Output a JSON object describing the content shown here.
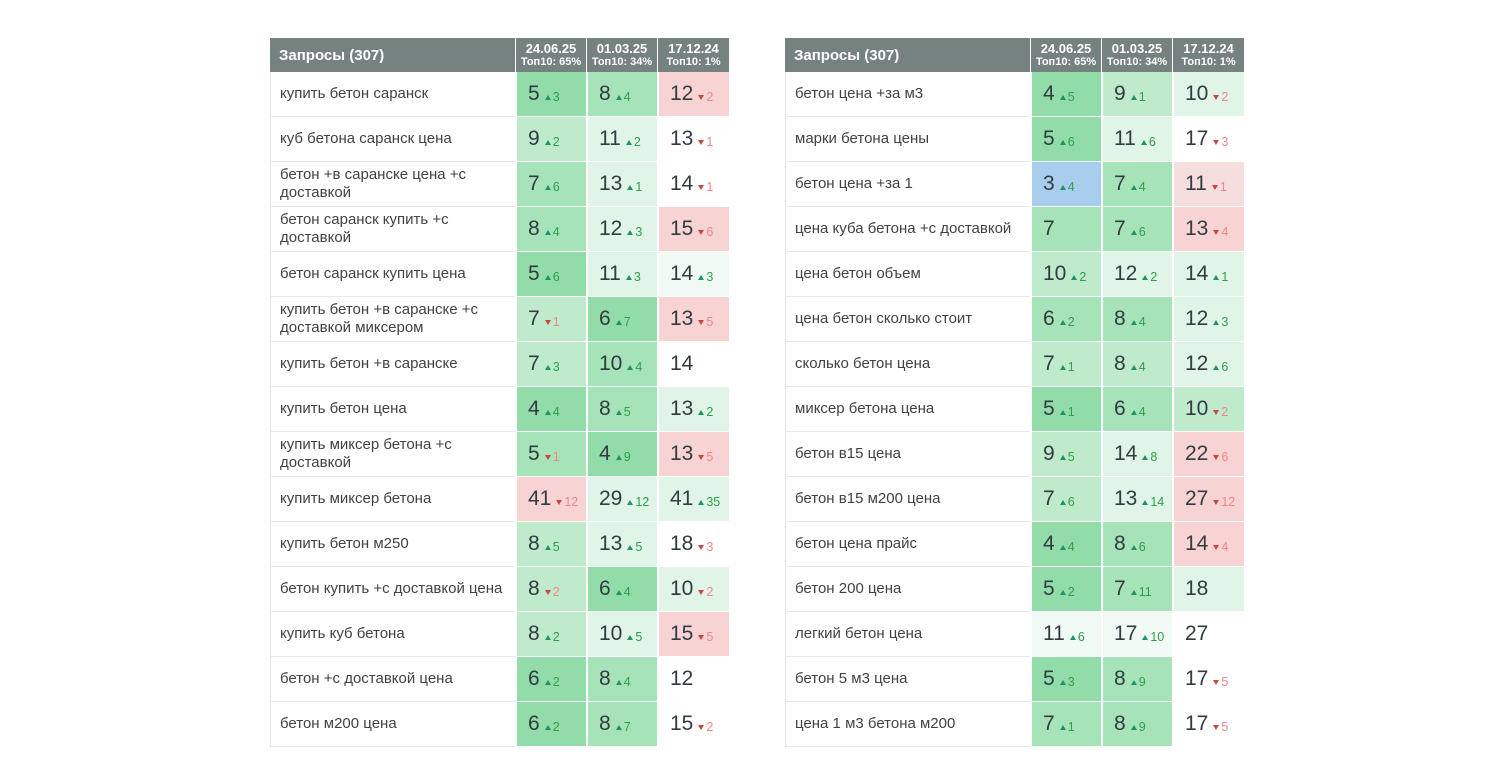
{
  "palette": {
    "header_bg": "#76827f",
    "header_text": "#ffffff",
    "query_text": "#424242",
    "value_text": "#323c40",
    "up_arrow": "#1d9464",
    "up_num": "#2da048",
    "down_arrow": "#c9473f",
    "down_num": "#ef8787",
    "g1": "#92dcaa",
    "g2": "#a7e3b9",
    "g3": "#bfeacc",
    "g4": "#e0f4e7",
    "g5": "#f0f9f4",
    "p1": "#f8d3d3",
    "p2": "#f7dede",
    "bl": "#a9cdec",
    "wh": "#ffffff"
  },
  "tables": [
    {
      "title": "Запросы (307)",
      "columns": [
        {
          "date": "24.06.25",
          "top10": "Топ10: 65%"
        },
        {
          "date": "01.03.25",
          "top10": "Топ10: 34%"
        },
        {
          "date": "17.12.24",
          "top10": "Топ10: 1%"
        }
      ],
      "rows": [
        {
          "query": "купить бетон саранск",
          "cells": [
            {
              "pos": "5",
              "dir": "up",
              "delta": "3",
              "bg": "g1"
            },
            {
              "pos": "8",
              "dir": "up",
              "delta": "4",
              "bg": "g2"
            },
            {
              "pos": "12",
              "dir": "down",
              "delta": "2",
              "bg": "p1"
            }
          ]
        },
        {
          "query": "куб бетона саранск цена",
          "cells": [
            {
              "pos": "9",
              "dir": "up",
              "delta": "2",
              "bg": "g3"
            },
            {
              "pos": "11",
              "dir": "up",
              "delta": "2",
              "bg": "g4"
            },
            {
              "pos": "13",
              "dir": "down",
              "delta": "1",
              "bg": "wh"
            }
          ]
        },
        {
          "query": "бетон +в саранске цена +с доставкой",
          "cells": [
            {
              "pos": "7",
              "dir": "up",
              "delta": "6",
              "bg": "g2"
            },
            {
              "pos": "13",
              "dir": "up",
              "delta": "1",
              "bg": "g4"
            },
            {
              "pos": "14",
              "dir": "down",
              "delta": "1",
              "bg": "wh"
            }
          ]
        },
        {
          "query": "бетон саранск купить +с доставкой",
          "cells": [
            {
              "pos": "8",
              "dir": "up",
              "delta": "4",
              "bg": "g2"
            },
            {
              "pos": "12",
              "dir": "up",
              "delta": "3",
              "bg": "g4"
            },
            {
              "pos": "15",
              "dir": "down",
              "delta": "6",
              "bg": "p1"
            }
          ]
        },
        {
          "query": "бетон саранск купить цена",
          "cells": [
            {
              "pos": "5",
              "dir": "up",
              "delta": "6",
              "bg": "g1"
            },
            {
              "pos": "11",
              "dir": "up",
              "delta": "3",
              "bg": "g4"
            },
            {
              "pos": "14",
              "dir": "up",
              "delta": "3",
              "bg": "g5"
            }
          ]
        },
        {
          "query": "купить бетон +в саранске +с доставкой миксером",
          "cells": [
            {
              "pos": "7",
              "dir": "down",
              "delta": "1",
              "bg": "g3"
            },
            {
              "pos": "6",
              "dir": "up",
              "delta": "7",
              "bg": "g1"
            },
            {
              "pos": "13",
              "dir": "down",
              "delta": "5",
              "bg": "p1"
            }
          ]
        },
        {
          "query": "купить бетон +в саранске",
          "cells": [
            {
              "pos": "7",
              "dir": "up",
              "delta": "3",
              "bg": "g3"
            },
            {
              "pos": "10",
              "dir": "up",
              "delta": "4",
              "bg": "g2"
            },
            {
              "pos": "14",
              "dir": null,
              "delta": null,
              "bg": "wh"
            }
          ]
        },
        {
          "query": "купить бетон цена",
          "cells": [
            {
              "pos": "4",
              "dir": "up",
              "delta": "4",
              "bg": "g1"
            },
            {
              "pos": "8",
              "dir": "up",
              "delta": "5",
              "bg": "g2"
            },
            {
              "pos": "13",
              "dir": "up",
              "delta": "2",
              "bg": "g4"
            }
          ]
        },
        {
          "query": "купить миксер бетона +с доставкой",
          "cells": [
            {
              "pos": "5",
              "dir": "down",
              "delta": "1",
              "bg": "g2"
            },
            {
              "pos": "4",
              "dir": "up",
              "delta": "9",
              "bg": "g1"
            },
            {
              "pos": "13",
              "dir": "down",
              "delta": "5",
              "bg": "p1"
            }
          ]
        },
        {
          "query": "купить миксер бетона",
          "cells": [
            {
              "pos": "41",
              "dir": "down",
              "delta": "12",
              "bg": "p1"
            },
            {
              "pos": "29",
              "dir": "up",
              "delta": "12",
              "bg": "g4"
            },
            {
              "pos": "41",
              "dir": "up",
              "delta": "35",
              "bg": "g4"
            }
          ]
        },
        {
          "query": "купить бетон м250",
          "cells": [
            {
              "pos": "8",
              "dir": "up",
              "delta": "5",
              "bg": "g3"
            },
            {
              "pos": "13",
              "dir": "up",
              "delta": "5",
              "bg": "g4"
            },
            {
              "pos": "18",
              "dir": "down",
              "delta": "3",
              "bg": "wh"
            }
          ]
        },
        {
          "query": "бетон купить +с доставкой цена",
          "cells": [
            {
              "pos": "8",
              "dir": "down",
              "delta": "2",
              "bg": "g3"
            },
            {
              "pos": "6",
              "dir": "up",
              "delta": "4",
              "bg": "g1"
            },
            {
              "pos": "10",
              "dir": "down",
              "delta": "2",
              "bg": "g4"
            }
          ]
        },
        {
          "query": "купить куб бетона",
          "cells": [
            {
              "pos": "8",
              "dir": "up",
              "delta": "2",
              "bg": "g3"
            },
            {
              "pos": "10",
              "dir": "up",
              "delta": "5",
              "bg": "g4"
            },
            {
              "pos": "15",
              "dir": "down",
              "delta": "5",
              "bg": "p1"
            }
          ]
        },
        {
          "query": "бетон +с доставкой цена",
          "cells": [
            {
              "pos": "6",
              "dir": "up",
              "delta": "2",
              "bg": "g1"
            },
            {
              "pos": "8",
              "dir": "up",
              "delta": "4",
              "bg": "g2"
            },
            {
              "pos": "12",
              "dir": null,
              "delta": null,
              "bg": "wh"
            }
          ]
        },
        {
          "query": "бетон м200 цена",
          "cells": [
            {
              "pos": "6",
              "dir": "up",
              "delta": "2",
              "bg": "g1"
            },
            {
              "pos": "8",
              "dir": "up",
              "delta": "7",
              "bg": "g2"
            },
            {
              "pos": "15",
              "dir": "down",
              "delta": "2",
              "bg": "wh"
            }
          ]
        }
      ]
    },
    {
      "title": "Запросы (307)",
      "columns": [
        {
          "date": "24.06.25",
          "top10": "Топ10: 65%"
        },
        {
          "date": "01.03.25",
          "top10": "Топ10: 34%"
        },
        {
          "date": "17.12.24",
          "top10": "Топ10: 1%"
        }
      ],
      "rows": [
        {
          "query": "бетон цена +за м3",
          "cells": [
            {
              "pos": "4",
              "dir": "up",
              "delta": "5",
              "bg": "g1"
            },
            {
              "pos": "9",
              "dir": "up",
              "delta": "1",
              "bg": "g3"
            },
            {
              "pos": "10",
              "dir": "down",
              "delta": "2",
              "bg": "g4"
            }
          ]
        },
        {
          "query": "марки бетона цены",
          "cells": [
            {
              "pos": "5",
              "dir": "up",
              "delta": "6",
              "bg": "g1"
            },
            {
              "pos": "11",
              "dir": "up",
              "delta": "6",
              "bg": "g4"
            },
            {
              "pos": "17",
              "dir": "down",
              "delta": "3",
              "bg": "wh"
            }
          ]
        },
        {
          "query": "бетон цена +за 1",
          "cells": [
            {
              "pos": "3",
              "dir": "up",
              "delta": "4",
              "bg": "bl"
            },
            {
              "pos": "7",
              "dir": "up",
              "delta": "4",
              "bg": "g2"
            },
            {
              "pos": "11",
              "dir": "down",
              "delta": "1",
              "bg": "p2"
            }
          ]
        },
        {
          "query": "цена куба бетона +с доставкой",
          "cells": [
            {
              "pos": "7",
              "dir": null,
              "delta": null,
              "bg": "g2"
            },
            {
              "pos": "7",
              "dir": "up",
              "delta": "6",
              "bg": "g2"
            },
            {
              "pos": "13",
              "dir": "down",
              "delta": "4",
              "bg": "p1"
            }
          ]
        },
        {
          "query": "цена бетон объем",
          "cells": [
            {
              "pos": "10",
              "dir": "up",
              "delta": "2",
              "bg": "g3"
            },
            {
              "pos": "12",
              "dir": "up",
              "delta": "2",
              "bg": "g4"
            },
            {
              "pos": "14",
              "dir": "up",
              "delta": "1",
              "bg": "g4"
            }
          ]
        },
        {
          "query": "цена бетон сколько стоит",
          "cells": [
            {
              "pos": "6",
              "dir": "up",
              "delta": "2",
              "bg": "g2"
            },
            {
              "pos": "8",
              "dir": "up",
              "delta": "4",
              "bg": "g2"
            },
            {
              "pos": "12",
              "dir": "up",
              "delta": "3",
              "bg": "g4"
            }
          ]
        },
        {
          "query": "сколько бетон цена",
          "cells": [
            {
              "pos": "7",
              "dir": "up",
              "delta": "1",
              "bg": "g3"
            },
            {
              "pos": "8",
              "dir": "up",
              "delta": "4",
              "bg": "g3"
            },
            {
              "pos": "12",
              "dir": "up",
              "delta": "6",
              "bg": "g4"
            }
          ]
        },
        {
          "query": "миксер бетона цена",
          "cells": [
            {
              "pos": "5",
              "dir": "up",
              "delta": "1",
              "bg": "g1"
            },
            {
              "pos": "6",
              "dir": "up",
              "delta": "4",
              "bg": "g2"
            },
            {
              "pos": "10",
              "dir": "down",
              "delta": "2",
              "bg": "g3"
            }
          ]
        },
        {
          "query": "бетон в15 цена",
          "cells": [
            {
              "pos": "9",
              "dir": "up",
              "delta": "5",
              "bg": "g3"
            },
            {
              "pos": "14",
              "dir": "up",
              "delta": "8",
              "bg": "g4"
            },
            {
              "pos": "22",
              "dir": "down",
              "delta": "6",
              "bg": "p1"
            }
          ]
        },
        {
          "query": "бетон в15 м200 цена",
          "cells": [
            {
              "pos": "7",
              "dir": "up",
              "delta": "6",
              "bg": "g3"
            },
            {
              "pos": "13",
              "dir": "up",
              "delta": "14",
              "bg": "g4"
            },
            {
              "pos": "27",
              "dir": "down",
              "delta": "12",
              "bg": "p1"
            }
          ]
        },
        {
          "query": "бетон цена прайс",
          "cells": [
            {
              "pos": "4",
              "dir": "up",
              "delta": "4",
              "bg": "g1"
            },
            {
              "pos": "8",
              "dir": "up",
              "delta": "6",
              "bg": "g2"
            },
            {
              "pos": "14",
              "dir": "down",
              "delta": "4",
              "bg": "p1"
            }
          ]
        },
        {
          "query": "бетон 200 цена",
          "cells": [
            {
              "pos": "5",
              "dir": "up",
              "delta": "2",
              "bg": "g1"
            },
            {
              "pos": "7",
              "dir": "up",
              "delta": "11",
              "bg": "g2"
            },
            {
              "pos": "18",
              "dir": null,
              "delta": null,
              "bg": "g4"
            }
          ]
        },
        {
          "query": "легкий бетон цена",
          "cells": [
            {
              "pos": "11",
              "dir": "up",
              "delta": "6",
              "bg": "g5"
            },
            {
              "pos": "17",
              "dir": "up",
              "delta": "10",
              "bg": "g5"
            },
            {
              "pos": "27",
              "dir": null,
              "delta": null,
              "bg": "wh"
            }
          ]
        },
        {
          "query": "бетон 5 м3 цена",
          "cells": [
            {
              "pos": "5",
              "dir": "up",
              "delta": "3",
              "bg": "g1"
            },
            {
              "pos": "8",
              "dir": "up",
              "delta": "9",
              "bg": "g2"
            },
            {
              "pos": "17",
              "dir": "down",
              "delta": "5",
              "bg": "wh"
            }
          ]
        },
        {
          "query": "цена 1 м3 бетона м200",
          "cells": [
            {
              "pos": "7",
              "dir": "up",
              "delta": "1",
              "bg": "g2"
            },
            {
              "pos": "8",
              "dir": "up",
              "delta": "9",
              "bg": "g2"
            },
            {
              "pos": "17",
              "dir": "down",
              "delta": "5",
              "bg": "wh"
            }
          ]
        }
      ]
    }
  ]
}
